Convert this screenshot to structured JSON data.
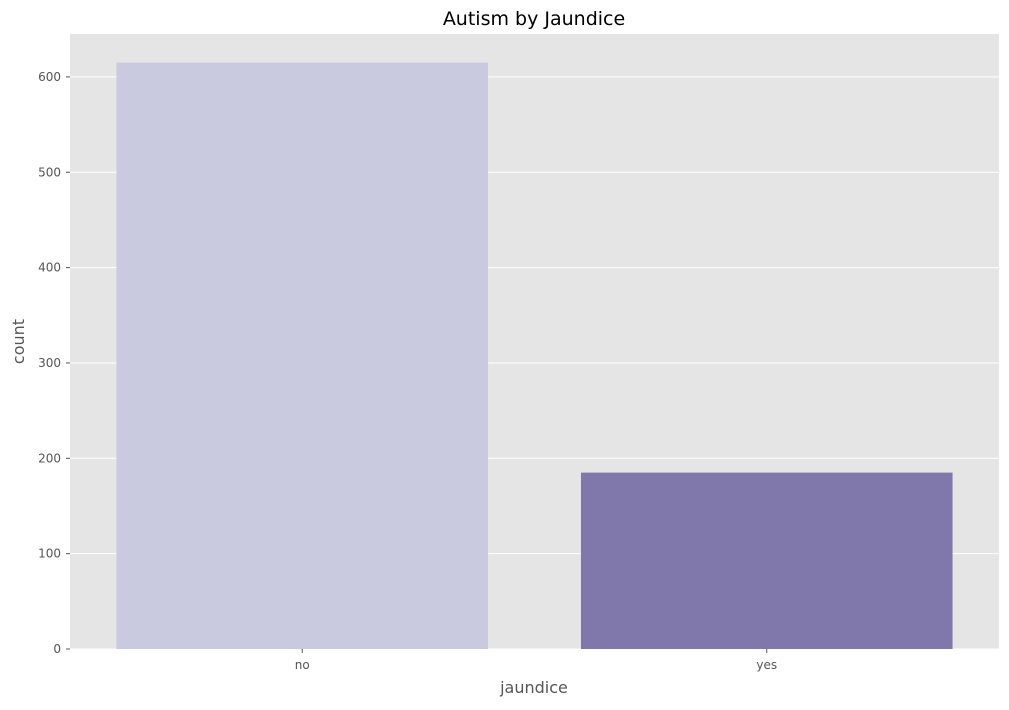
{
  "chart_data": {
    "type": "bar",
    "title": "Autism by Jaundice",
    "xlabel": "jaundice",
    "ylabel": "count",
    "categories": [
      "no",
      "yes"
    ],
    "values": [
      615,
      185
    ],
    "colors": [
      "#c9cadf",
      "#8078ab"
    ],
    "ylim": [
      0,
      645
    ],
    "yticks": [
      0,
      100,
      200,
      300,
      400,
      500,
      600
    ],
    "grid": true,
    "background_color": "#e5e5e5",
    "grid_color": "#ffffff",
    "text_color": "#555555",
    "title_color": "#000000"
  }
}
